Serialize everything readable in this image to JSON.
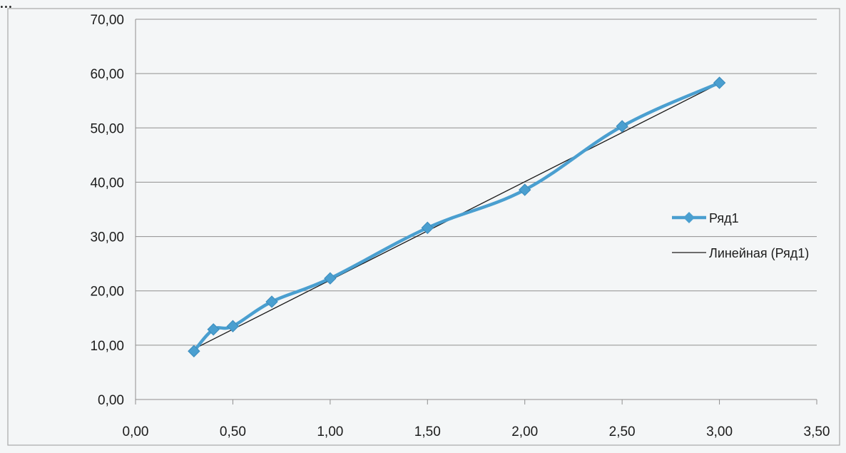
{
  "caption": "...",
  "chart_data": {
    "type": "line",
    "series": [
      {
        "name": "Ряд1",
        "color": "#4a9fd0",
        "x": [
          0.3,
          0.4,
          0.5,
          0.7,
          1.0,
          1.5,
          2.0,
          2.5,
          3.0
        ],
        "y": [
          8.9,
          12.9,
          13.5,
          18.0,
          22.3,
          31.6,
          38.6,
          50.3,
          58.3
        ]
      },
      {
        "name": "Линейная (Ряд1)",
        "color": "#1a1a1a",
        "x": [
          0.3,
          3.0
        ],
        "y": [
          9.3,
          58.2
        ]
      }
    ],
    "xlim": [
      0,
      3.5
    ],
    "ylim": [
      0,
      70
    ],
    "x_ticks": [
      "0,00",
      "0,50",
      "1,00",
      "1,50",
      "2,00",
      "2,50",
      "3,00",
      "3,50"
    ],
    "y_ticks": [
      "0,00",
      "10,00",
      "20,00",
      "30,00",
      "40,00",
      "50,00",
      "60,00",
      "70,00"
    ],
    "grid": "horizontal",
    "legend": "right",
    "marker": "diamond"
  }
}
